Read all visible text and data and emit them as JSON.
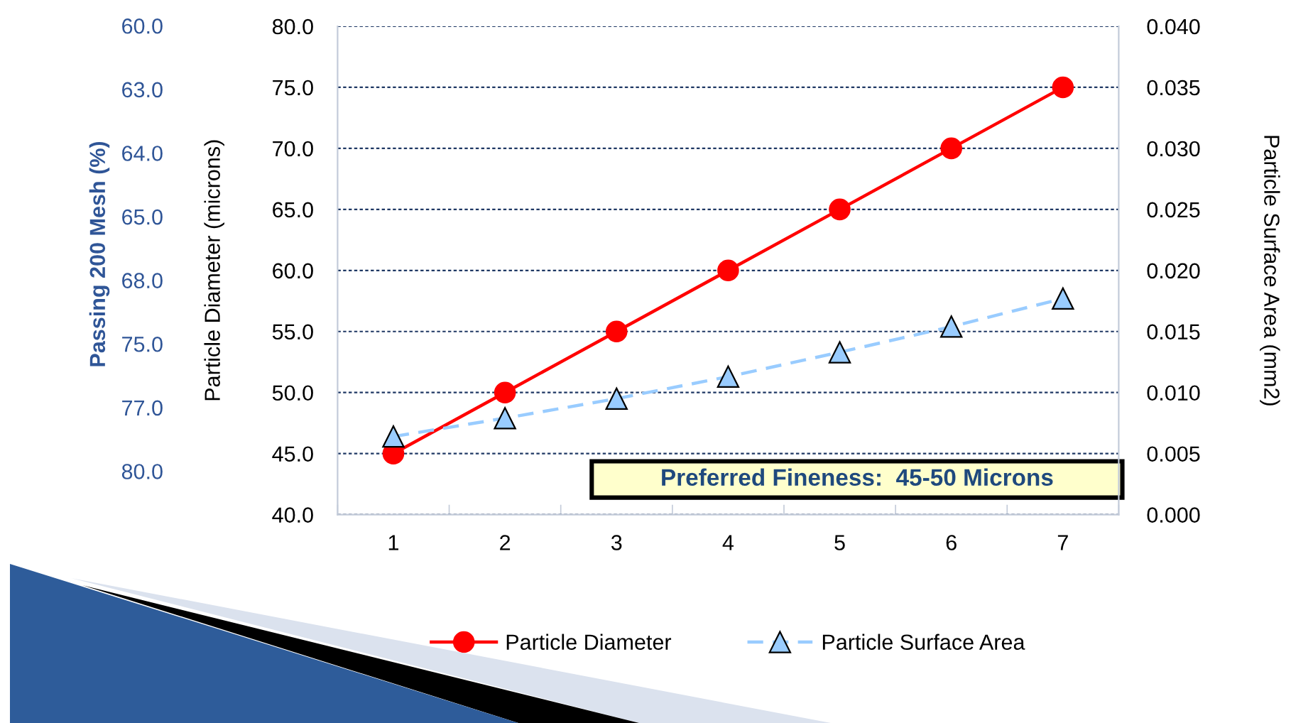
{
  "chart_data": {
    "type": "line",
    "categories": [
      "1",
      "2",
      "3",
      "4",
      "5",
      "6",
      "7"
    ],
    "series": [
      {
        "name": "Particle Diameter",
        "color": "#ff0000",
        "values": [
          45,
          50,
          55,
          60,
          65,
          70,
          75
        ],
        "marker": "circle",
        "line_style": "solid"
      },
      {
        "name": "Particle Surface Area",
        "color": "#99ccff",
        "values": [
          0.0064,
          0.0079,
          0.0095,
          0.0113,
          0.0133,
          0.0154,
          0.0177
        ],
        "axis": "y2",
        "marker": "triangle",
        "line_style": "dashed"
      }
    ],
    "ylabel": "Particle Diameter (microns)",
    "y2label": "Particle Surface Area (mm2)",
    "ylim": [
      40,
      80
    ],
    "yticks": [
      {
        "value": 40,
        "label": "40.0"
      },
      {
        "value": 45,
        "label": "45.0"
      },
      {
        "value": 50,
        "label": "50.0"
      },
      {
        "value": 55,
        "label": "55.0"
      },
      {
        "value": 60,
        "label": "60.0"
      },
      {
        "value": 65,
        "label": "65.0"
      },
      {
        "value": 70,
        "label": "70.0"
      },
      {
        "value": 75,
        "label": "75.0"
      },
      {
        "value": 80,
        "label": "80.0"
      }
    ],
    "y2lim": [
      0,
      0.04
    ],
    "y2ticks": [
      {
        "value": 0,
        "label": "0.000"
      },
      {
        "value": 0.005,
        "label": "0.005"
      },
      {
        "value": 0.01,
        "label": "0.010"
      },
      {
        "value": 0.015,
        "label": "0.015"
      },
      {
        "value": 0.02,
        "label": "0.020"
      },
      {
        "value": 0.025,
        "label": "0.025"
      },
      {
        "value": 0.03,
        "label": "0.030"
      },
      {
        "value": 0.035,
        "label": "0.035"
      },
      {
        "value": 0.04,
        "label": "0.040"
      }
    ],
    "annotations": [
      "Passing 200 Mesh (%)",
      "60.0\n63.0\n64.0\n65.0\n68.0\n75.0\n77.0\n80.0",
      "Preferred Fineness:  45-50 Microns"
    ],
    "grid": "y",
    "legend": "bottom"
  }
}
